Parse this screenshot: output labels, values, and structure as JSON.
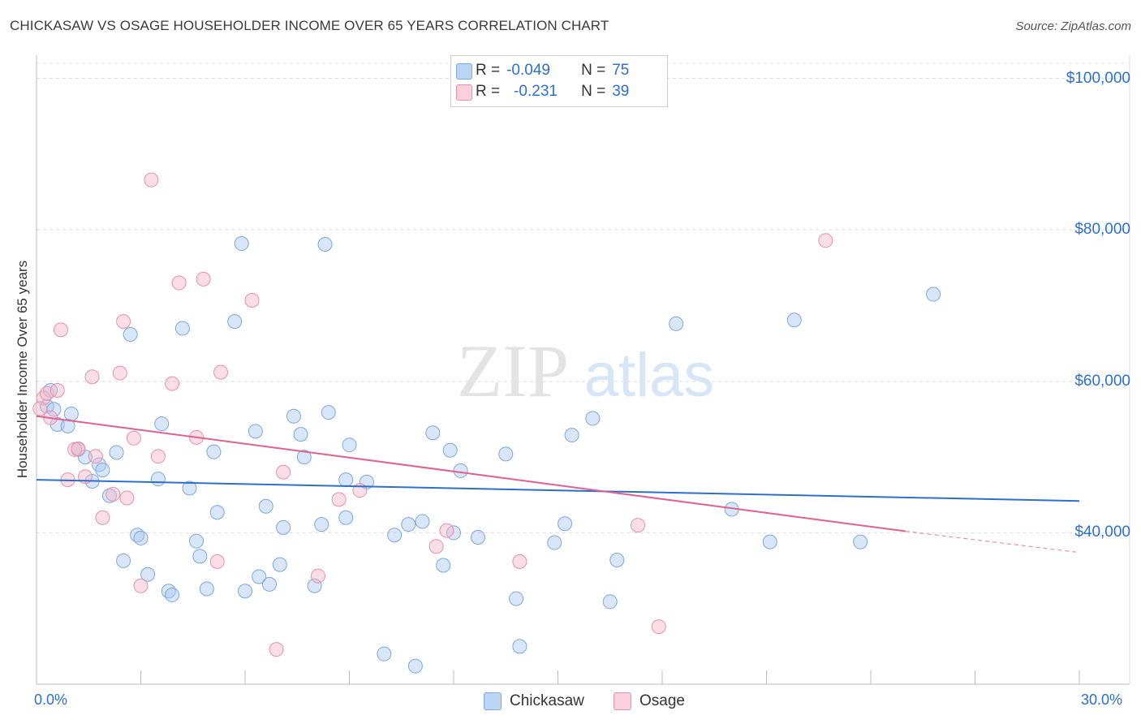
{
  "title": "CHICKASAW VS OSAGE HOUSEHOLDER INCOME OVER 65 YEARS CORRELATION CHART",
  "source": "Source: ZipAtlas.com",
  "watermark": {
    "zip": "ZIP",
    "atlas": "atlas"
  },
  "legend_top": {
    "rows": [
      {
        "r_label": "R =",
        "r_value": "-0.049",
        "n_label": "N =",
        "n_value": "75",
        "color": "#a8c8f0"
      },
      {
        "r_label": "R =",
        "r_value": "-0.231",
        "n_label": "N =",
        "n_value": "39",
        "color": "#f5b5c8"
      }
    ]
  },
  "legend_bottom": [
    {
      "name": "Chickasaw",
      "color": "#a8c8f0"
    },
    {
      "name": "Osage",
      "color": "#f5b5c8"
    }
  ],
  "chart_data": {
    "type": "scatter",
    "title": "CHICKASAW VS OSAGE HOUSEHOLDER INCOME OVER 65 YEARS CORRELATION CHART",
    "xlabel": "",
    "ylabel": "Householder Income Over 65 years",
    "xlim": [
      0,
      30
    ],
    "ylim": [
      20000,
      102000
    ],
    "x_tick_labels": [
      "0.0%",
      "30.0%"
    ],
    "y_ticks": [
      40000,
      60000,
      80000,
      100000
    ],
    "y_tick_labels": [
      "$40,000",
      "$60,000",
      "$80,000",
      "$100,000"
    ],
    "grid": true,
    "legend_position": "top-center",
    "series": [
      {
        "name": "Chickasaw",
        "color": "#a8c8f0",
        "stroke": "#7aa8e0",
        "trend": {
          "x0": 0,
          "y0": 47000,
          "x1": 30,
          "y1": 44200,
          "color": "#2c6fd1"
        },
        "points": [
          [
            0.3,
            56700
          ],
          [
            0.4,
            58800
          ],
          [
            0.5,
            56300
          ],
          [
            0.6,
            54300
          ],
          [
            0.9,
            54100
          ],
          [
            1.0,
            55700
          ],
          [
            1.2,
            51000
          ],
          [
            1.4,
            50000
          ],
          [
            1.6,
            46800
          ],
          [
            1.8,
            49000
          ],
          [
            1.9,
            48300
          ],
          [
            2.1,
            44900
          ],
          [
            2.3,
            50600
          ],
          [
            2.5,
            36300
          ],
          [
            2.7,
            66200
          ],
          [
            2.9,
            39700
          ],
          [
            3.0,
            39300
          ],
          [
            3.2,
            34500
          ],
          [
            3.5,
            47100
          ],
          [
            3.6,
            54400
          ],
          [
            3.8,
            32300
          ],
          [
            3.9,
            31800
          ],
          [
            4.2,
            67000
          ],
          [
            4.4,
            45900
          ],
          [
            4.6,
            38900
          ],
          [
            4.7,
            36900
          ],
          [
            4.9,
            32600
          ],
          [
            5.1,
            50700
          ],
          [
            5.2,
            42700
          ],
          [
            5.7,
            67900
          ],
          [
            5.9,
            78200
          ],
          [
            6.0,
            32300
          ],
          [
            6.3,
            53400
          ],
          [
            6.4,
            34200
          ],
          [
            6.6,
            43500
          ],
          [
            6.7,
            33200
          ],
          [
            7.0,
            35800
          ],
          [
            7.1,
            40700
          ],
          [
            7.4,
            55400
          ],
          [
            7.6,
            53000
          ],
          [
            7.7,
            50000
          ],
          [
            8.0,
            33000
          ],
          [
            8.2,
            41100
          ],
          [
            8.3,
            78100
          ],
          [
            8.4,
            55900
          ],
          [
            8.9,
            47000
          ],
          [
            8.9,
            42000
          ],
          [
            9.0,
            51600
          ],
          [
            9.5,
            46700
          ],
          [
            10.0,
            24000
          ],
          [
            10.3,
            39700
          ],
          [
            10.7,
            41100
          ],
          [
            10.9,
            22400
          ],
          [
            11.1,
            41500
          ],
          [
            11.4,
            53200
          ],
          [
            11.7,
            35700
          ],
          [
            11.9,
            50900
          ],
          [
            12.0,
            40000
          ],
          [
            12.2,
            48200
          ],
          [
            12.7,
            39400
          ],
          [
            13.5,
            50400
          ],
          [
            13.8,
            31300
          ],
          [
            13.9,
            25000
          ],
          [
            14.9,
            38700
          ],
          [
            15.2,
            41200
          ],
          [
            15.4,
            52900
          ],
          [
            16.0,
            55100
          ],
          [
            16.5,
            30900
          ],
          [
            16.7,
            36400
          ],
          [
            18.4,
            67600
          ],
          [
            20.0,
            43100
          ],
          [
            21.1,
            38800
          ],
          [
            21.8,
            68100
          ],
          [
            23.7,
            38800
          ],
          [
            25.8,
            71500
          ]
        ]
      },
      {
        "name": "Osage",
        "color": "#f5b5c8",
        "stroke": "#e890ab",
        "trend": {
          "x0": 0,
          "y0": 55400,
          "x1": 25,
          "y1": 40200,
          "color": "#e0608f"
        },
        "trend_dashed": {
          "x0": 25,
          "y0": 40200,
          "x1": 30,
          "y1": 37400
        },
        "points": [
          [
            0.2,
            57800
          ],
          [
            0.3,
            58400
          ],
          [
            0.4,
            55200
          ],
          [
            0.6,
            58800
          ],
          [
            0.7,
            66800
          ],
          [
            0.9,
            47000
          ],
          [
            1.1,
            51000
          ],
          [
            1.2,
            51100
          ],
          [
            1.4,
            47400
          ],
          [
            1.6,
            60600
          ],
          [
            1.7,
            50100
          ],
          [
            1.9,
            42000
          ],
          [
            2.2,
            45100
          ],
          [
            2.4,
            61100
          ],
          [
            2.5,
            67900
          ],
          [
            2.6,
            44600
          ],
          [
            2.8,
            52500
          ],
          [
            3.0,
            33000
          ],
          [
            3.3,
            86600
          ],
          [
            3.5,
            50100
          ],
          [
            3.9,
            59700
          ],
          [
            4.1,
            73000
          ],
          [
            4.6,
            52600
          ],
          [
            4.8,
            73500
          ],
          [
            5.2,
            36200
          ],
          [
            5.3,
            61200
          ],
          [
            6.2,
            70700
          ],
          [
            6.9,
            24600
          ],
          [
            7.1,
            48000
          ],
          [
            8.1,
            34300
          ],
          [
            8.7,
            44400
          ],
          [
            9.3,
            45600
          ],
          [
            11.5,
            38200
          ],
          [
            11.8,
            40300
          ],
          [
            13.9,
            36200
          ],
          [
            17.3,
            41000
          ],
          [
            17.9,
            27600
          ],
          [
            22.7,
            78600
          ],
          [
            0.1,
            56400
          ]
        ]
      }
    ]
  }
}
